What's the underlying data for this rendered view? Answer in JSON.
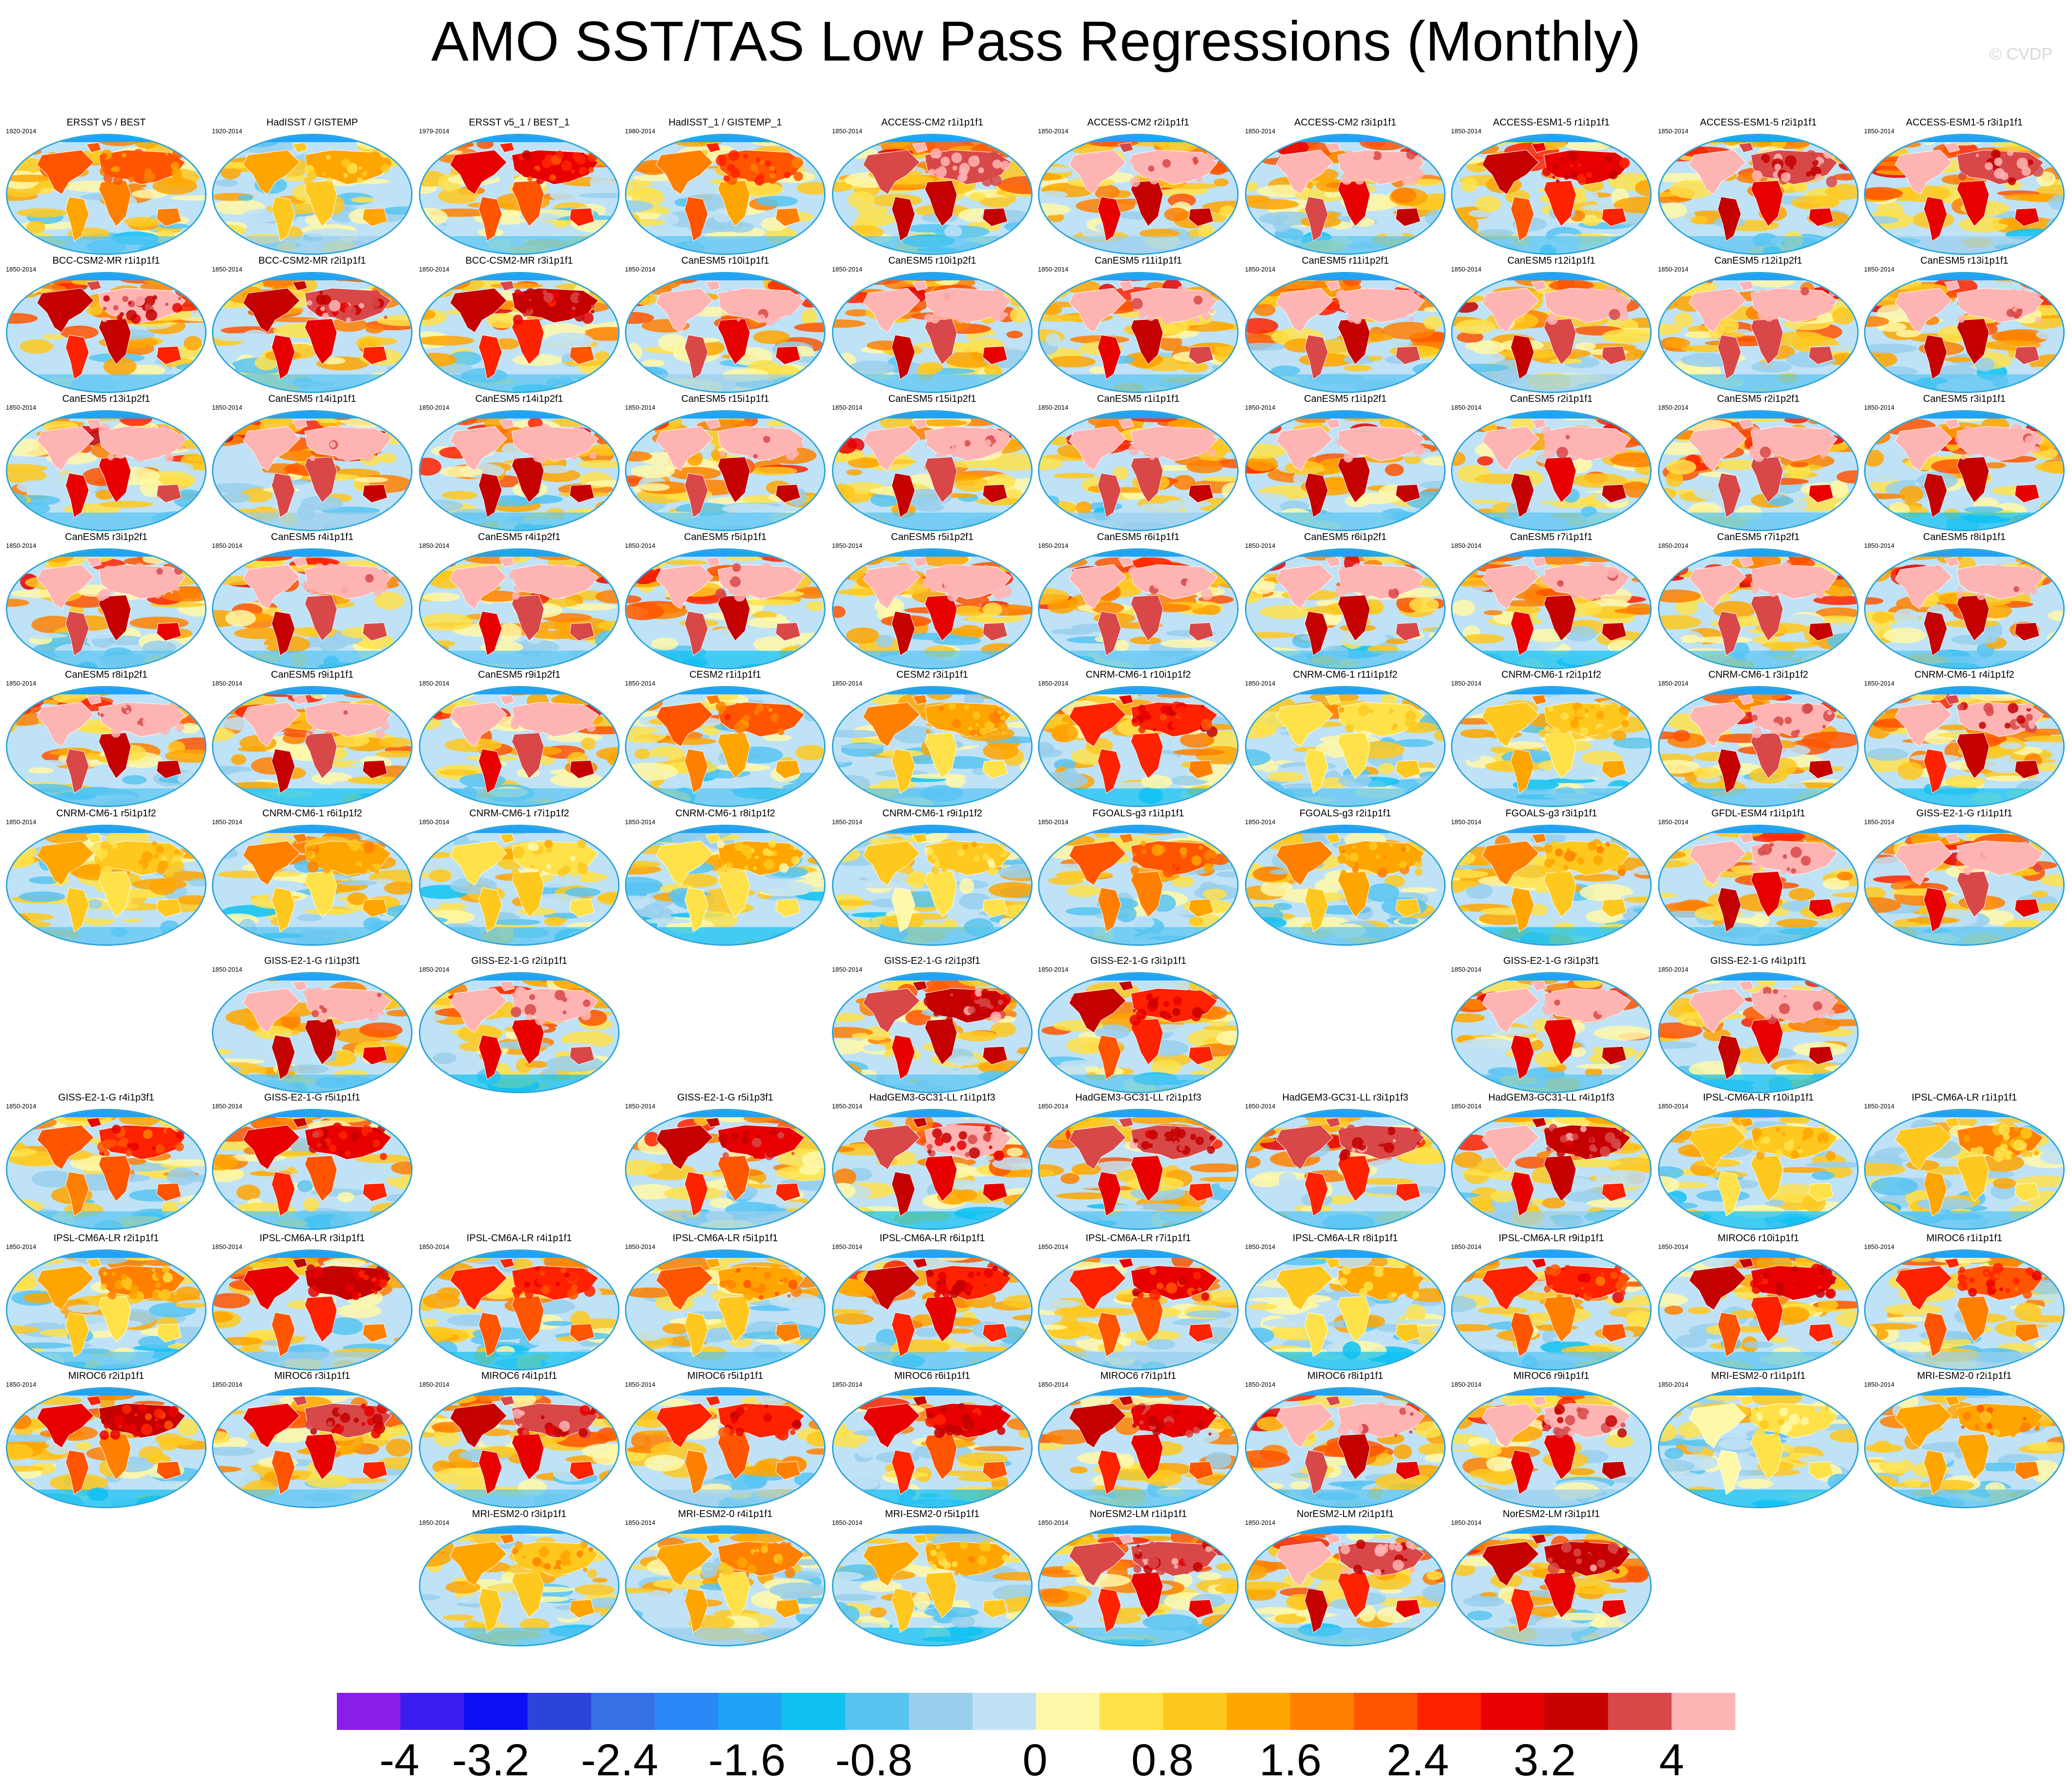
{
  "title": "AMO SST/TAS Low Pass Regressions (Monthly)",
  "credit": "© CVDP",
  "chart_data": {
    "type": "heatmap",
    "description_type": "panel-grid of global regression maps",
    "colorbar": {
      "colors": [
        "#8a1ee6",
        "#3a1ef0",
        "#0a10f2",
        "#2b45d8",
        "#3571e4",
        "#2a88f6",
        "#20a2f6",
        "#10c2f2",
        "#58c4f2",
        "#98cfec",
        "#bfe2f6",
        "#fff8a8",
        "#ffe24a",
        "#ffc81e",
        "#ffa500",
        "#ff8000",
        "#ff5500",
        "#ff2200",
        "#e80000",
        "#c40000",
        "#d84848",
        "#ffb4b4"
      ],
      "tick_labels": [
        "-4",
        "-3.2",
        "-2.4",
        "-1.6",
        "-0.8",
        "0",
        "0.8",
        "1.6",
        "2.4",
        "3.2",
        "4"
      ],
      "range": [
        -4,
        4
      ]
    },
    "panels": [
      {
        "name": "ERSST v5 / BEST",
        "years": "1920-2014",
        "row": 0,
        "col": 0,
        "intensity": 0.45
      },
      {
        "name": "HadISST / GISTEMP",
        "years": "1920-2014",
        "row": 0,
        "col": 1,
        "intensity": 0.3
      },
      {
        "name": "ERSST v5_1 / BEST_1",
        "years": "1979-2014",
        "row": 0,
        "col": 2,
        "intensity": 0.6
      },
      {
        "name": "HadISST_1 / GISTEMP_1",
        "years": "1980-2014",
        "row": 0,
        "col": 3,
        "intensity": 0.5
      },
      {
        "name": "ACCESS-CM2 r1i1p1f1",
        "years": "1850-2014",
        "row": 0,
        "col": 4,
        "intensity": 0.85
      },
      {
        "name": "ACCESS-CM2 r2i1p1f1",
        "years": "1850-2014",
        "row": 0,
        "col": 5,
        "intensity": 0.85
      },
      {
        "name": "ACCESS-CM2 r3i1p1f1",
        "years": "1850-2014",
        "row": 0,
        "col": 6,
        "intensity": 0.9
      },
      {
        "name": "ACCESS-ESM1-5 r1i1p1f1",
        "years": "1850-2014",
        "row": 0,
        "col": 7,
        "intensity": 0.65
      },
      {
        "name": "ACCESS-ESM1-5 r2i1p1f1",
        "years": "1850-2014",
        "row": 0,
        "col": 8,
        "intensity": 0.8
      },
      {
        "name": "ACCESS-ESM1-5 r3i1p1f1",
        "years": "1850-2014",
        "row": 0,
        "col": 9,
        "intensity": 0.8
      },
      {
        "name": "BCC-CSM2-MR r1i1p1f1",
        "years": "1850-2014",
        "row": 1,
        "col": 0,
        "intensity": 0.75
      },
      {
        "name": "BCC-CSM2-MR r2i1p1f1",
        "years": "1850-2014",
        "row": 1,
        "col": 1,
        "intensity": 0.75
      },
      {
        "name": "BCC-CSM2-MR r3i1p1f1",
        "years": "1850-2014",
        "row": 1,
        "col": 2,
        "intensity": 0.7
      },
      {
        "name": "CanESM5 r10i1p1f1",
        "years": "1850-2014",
        "row": 1,
        "col": 3,
        "intensity": 0.9
      },
      {
        "name": "CanESM5 r10i1p2f1",
        "years": "1850-2014",
        "row": 1,
        "col": 4,
        "intensity": 0.9
      },
      {
        "name": "CanESM5 r11i1p1f1",
        "years": "1850-2014",
        "row": 1,
        "col": 5,
        "intensity": 0.9
      },
      {
        "name": "CanESM5 r11i1p2f1",
        "years": "1850-2014",
        "row": 1,
        "col": 6,
        "intensity": 0.9
      },
      {
        "name": "CanESM5 r12i1p1f1",
        "years": "1850-2014",
        "row": 1,
        "col": 7,
        "intensity": 0.9
      },
      {
        "name": "CanESM5 r12i1p2f1",
        "years": "1850-2014",
        "row": 1,
        "col": 8,
        "intensity": 0.9
      },
      {
        "name": "CanESM5 r13i1p1f1",
        "years": "1850-2014",
        "row": 1,
        "col": 9,
        "intensity": 0.9
      },
      {
        "name": "CanESM5 r13i1p2f1",
        "years": "1850-2014",
        "row": 2,
        "col": 0,
        "intensity": 0.9
      },
      {
        "name": "CanESM5 r14i1p1f1",
        "years": "1850-2014",
        "row": 2,
        "col": 1,
        "intensity": 0.9
      },
      {
        "name": "CanESM5 r14i1p2f1",
        "years": "1850-2014",
        "row": 2,
        "col": 2,
        "intensity": 0.9
      },
      {
        "name": "CanESM5 r15i1p1f1",
        "years": "1850-2014",
        "row": 2,
        "col": 3,
        "intensity": 0.9
      },
      {
        "name": "CanESM5 r15i1p2f1",
        "years": "1850-2014",
        "row": 2,
        "col": 4,
        "intensity": 0.9
      },
      {
        "name": "CanESM5 r1i1p1f1",
        "years": "1850-2014",
        "row": 2,
        "col": 5,
        "intensity": 0.9
      },
      {
        "name": "CanESM5 r1i1p2f1",
        "years": "1850-2014",
        "row": 2,
        "col": 6,
        "intensity": 0.9
      },
      {
        "name": "CanESM5 r2i1p1f1",
        "years": "1850-2014",
        "row": 2,
        "col": 7,
        "intensity": 0.9
      },
      {
        "name": "CanESM5 r2i1p2f1",
        "years": "1850-2014",
        "row": 2,
        "col": 8,
        "intensity": 0.9
      },
      {
        "name": "CanESM5 r3i1p1f1",
        "years": "1850-2014",
        "row": 2,
        "col": 9,
        "intensity": 0.9
      },
      {
        "name": "CanESM5 r3i1p2f1",
        "years": "1850-2014",
        "row": 3,
        "col": 0,
        "intensity": 0.9
      },
      {
        "name": "CanESM5 r4i1p1f1",
        "years": "1850-2014",
        "row": 3,
        "col": 1,
        "intensity": 0.9
      },
      {
        "name": "CanESM5 r4i1p2f1",
        "years": "1850-2014",
        "row": 3,
        "col": 2,
        "intensity": 0.9
      },
      {
        "name": "CanESM5 r5i1p1f1",
        "years": "1850-2014",
        "row": 3,
        "col": 3,
        "intensity": 0.9
      },
      {
        "name": "CanESM5 r5i1p2f1",
        "years": "1850-2014",
        "row": 3,
        "col": 4,
        "intensity": 0.9
      },
      {
        "name": "CanESM5 r6i1p1f1",
        "years": "1850-2014",
        "row": 3,
        "col": 5,
        "intensity": 0.9
      },
      {
        "name": "CanESM5 r6i1p2f1",
        "years": "1850-2014",
        "row": 3,
        "col": 6,
        "intensity": 0.9
      },
      {
        "name": "CanESM5 r7i1p1f1",
        "years": "1850-2014",
        "row": 3,
        "col": 7,
        "intensity": 0.9
      },
      {
        "name": "CanESM5 r7i1p2f1",
        "years": "1850-2014",
        "row": 3,
        "col": 8,
        "intensity": 0.9
      },
      {
        "name": "CanESM5 r8i1p1f1",
        "years": "1850-2014",
        "row": 3,
        "col": 9,
        "intensity": 0.9
      },
      {
        "name": "CanESM5 r8i1p2f1",
        "years": "1850-2014",
        "row": 4,
        "col": 0,
        "intensity": 0.9
      },
      {
        "name": "CanESM5 r9i1p1f1",
        "years": "1850-2014",
        "row": 4,
        "col": 1,
        "intensity": 0.9
      },
      {
        "name": "CanESM5 r9i1p2f1",
        "years": "1850-2014",
        "row": 4,
        "col": 2,
        "intensity": 0.9
      },
      {
        "name": "CESM2 r1i1p1f1",
        "years": "1850-2014",
        "row": 4,
        "col": 3,
        "intensity": 0.45
      },
      {
        "name": "CESM2 r3i1p1f1",
        "years": "1850-2014",
        "row": 4,
        "col": 4,
        "intensity": 0.35
      },
      {
        "name": "CNRM-CM6-1 r10i1p1f2",
        "years": "1850-2014",
        "row": 4,
        "col": 5,
        "intensity": 0.6
      },
      {
        "name": "CNRM-CM6-1 r11i1p1f2",
        "years": "1850-2014",
        "row": 4,
        "col": 6,
        "intensity": 0.25
      },
      {
        "name": "CNRM-CM6-1 r2i1p1f2",
        "years": "1850-2014",
        "row": 4,
        "col": 7,
        "intensity": 0.3
      },
      {
        "name": "CNRM-CM6-1 r3i1p1f2",
        "years": "1850-2014",
        "row": 4,
        "col": 8,
        "intensity": 0.85
      },
      {
        "name": "CNRM-CM6-1 r4i1p1f2",
        "years": "1850-2014",
        "row": 4,
        "col": 9,
        "intensity": 0.8
      },
      {
        "name": "CNRM-CM6-1 r5i1p1f2",
        "years": "1850-2014",
        "row": 5,
        "col": 0,
        "intensity": 0.3
      },
      {
        "name": "CNRM-CM6-1 r6i1p1f2",
        "years": "1850-2014",
        "row": 5,
        "col": 1,
        "intensity": 0.35
      },
      {
        "name": "CNRM-CM6-1 r7i1p1f2",
        "years": "1850-2014",
        "row": 5,
        "col": 2,
        "intensity": 0.25
      },
      {
        "name": "CNRM-CM6-1 r8i1p1f2",
        "years": "1850-2014",
        "row": 5,
        "col": 3,
        "intensity": 0.25
      },
      {
        "name": "CNRM-CM6-1 r9i1p1f2",
        "years": "1850-2014",
        "row": 5,
        "col": 4,
        "intensity": 0.25
      },
      {
        "name": "FGOALS-g3 r1i1p1f1",
        "years": "1850-2014",
        "row": 5,
        "col": 5,
        "intensity": 0.45
      },
      {
        "name": "FGOALS-g3 r2i1p1f1",
        "years": "1850-2014",
        "row": 5,
        "col": 6,
        "intensity": 0.35
      },
      {
        "name": "FGOALS-g3 r3i1p1f1",
        "years": "1850-2014",
        "row": 5,
        "col": 7,
        "intensity": 0.35
      },
      {
        "name": "GFDL-ESM4 r1i1p1f1",
        "years": "1850-2014",
        "row": 5,
        "col": 8,
        "intensity": 0.85
      },
      {
        "name": "GISS-E2-1-G r1i1p1f1",
        "years": "1850-2014",
        "row": 5,
        "col": 9,
        "intensity": 0.9
      },
      {
        "name": "GISS-E2-1-G r1i1p3f1",
        "years": "1850-2014",
        "row": 6,
        "col": 1,
        "intensity": 0.85
      },
      {
        "name": "GISS-E2-1-G r2i1p1f1",
        "years": "1850-2014",
        "row": 6,
        "col": 2,
        "intensity": 0.85
      },
      {
        "name": "GISS-E2-1-G r2i1p3f1",
        "years": "1850-2014",
        "row": 6,
        "col": 4,
        "intensity": 0.75
      },
      {
        "name": "GISS-E2-1-G r3i1p1f1",
        "years": "1850-2014",
        "row": 6,
        "col": 5,
        "intensity": 0.65
      },
      {
        "name": "GISS-E2-1-G r3i1p3f1",
        "years": "1850-2014",
        "row": 6,
        "col": 7,
        "intensity": 0.85
      },
      {
        "name": "GISS-E2-1-G r4i1p1f1",
        "years": "1850-2014",
        "row": 6,
        "col": 8,
        "intensity": 0.85
      },
      {
        "name": "GISS-E2-1-G r4i1p3f1",
        "years": "1850-2014",
        "row": 7,
        "col": 0,
        "intensity": 0.55
      },
      {
        "name": "GISS-E2-1-G r5i1p1f1",
        "years": "1850-2014",
        "row": 7,
        "col": 1,
        "intensity": 0.65
      },
      {
        "name": "GISS-E2-1-G r5i1p3f1",
        "years": "1850-2014",
        "row": 7,
        "col": 3,
        "intensity": 0.7
      },
      {
        "name": "HadGEM3-GC31-LL r1i1p1f3",
        "years": "1850-2014",
        "row": 7,
        "col": 4,
        "intensity": 0.75
      },
      {
        "name": "HadGEM3-GC31-LL r2i1p1f3",
        "years": "1850-2014",
        "row": 7,
        "col": 5,
        "intensity": 0.75
      },
      {
        "name": "HadGEM3-GC31-LL r3i1p1f3",
        "years": "1850-2014",
        "row": 7,
        "col": 6,
        "intensity": 0.75
      },
      {
        "name": "HadGEM3-GC31-LL r4i1p1f3",
        "years": "1850-2014",
        "row": 7,
        "col": 7,
        "intensity": 0.75
      },
      {
        "name": "IPSL-CM6A-LR r10i1p1f1",
        "years": "1850-2014",
        "row": 7,
        "col": 8,
        "intensity": 0.3
      },
      {
        "name": "IPSL-CM6A-LR r1i1p1f1",
        "years": "1850-2014",
        "row": 7,
        "col": 9,
        "intensity": 0.3
      },
      {
        "name": "IPSL-CM6A-LR r2i1p1f1",
        "years": "1850-2014",
        "row": 8,
        "col": 0,
        "intensity": 0.35
      },
      {
        "name": "IPSL-CM6A-LR r3i1p1f1",
        "years": "1850-2014",
        "row": 8,
        "col": 1,
        "intensity": 0.65
      },
      {
        "name": "IPSL-CM6A-LR r4i1p1f1",
        "years": "1850-2014",
        "row": 8,
        "col": 2,
        "intensity": 0.55
      },
      {
        "name": "IPSL-CM6A-LR r5i1p1f1",
        "years": "1850-2014",
        "row": 8,
        "col": 3,
        "intensity": 0.4
      },
      {
        "name": "IPSL-CM6A-LR r6i1p1f1",
        "years": "1850-2014",
        "row": 8,
        "col": 4,
        "intensity": 0.65
      },
      {
        "name": "IPSL-CM6A-LR r7i1p1f1",
        "years": "1850-2014",
        "row": 8,
        "col": 5,
        "intensity": 0.6
      },
      {
        "name": "IPSL-CM6A-LR r8i1p1f1",
        "years": "1850-2014",
        "row": 8,
        "col": 6,
        "intensity": 0.3
      },
      {
        "name": "IPSL-CM6A-LR r9i1p1f1",
        "years": "1850-2014",
        "row": 8,
        "col": 7,
        "intensity": 0.55
      },
      {
        "name": "MIROC6 r10i1p1f1",
        "years": "1850-2014",
        "row": 8,
        "col": 8,
        "intensity": 0.65
      },
      {
        "name": "MIROC6 r1i1p1f1",
        "years": "1850-2014",
        "row": 8,
        "col": 9,
        "intensity": 0.55
      },
      {
        "name": "MIROC6 r2i1p1f1",
        "years": "1850-2014",
        "row": 9,
        "col": 0,
        "intensity": 0.6
      },
      {
        "name": "MIROC6 r3i1p1f1",
        "years": "1850-2014",
        "row": 9,
        "col": 1,
        "intensity": 0.7
      },
      {
        "name": "MIROC6 r4i1p1f1",
        "years": "1850-2014",
        "row": 9,
        "col": 2,
        "intensity": 0.75
      },
      {
        "name": "MIROC6 r5i1p1f1",
        "years": "1850-2014",
        "row": 9,
        "col": 3,
        "intensity": 0.6
      },
      {
        "name": "MIROC6 r6i1p1f1",
        "years": "1850-2014",
        "row": 9,
        "col": 4,
        "intensity": 0.65
      },
      {
        "name": "MIROC6 r7i1p1f1",
        "years": "1850-2014",
        "row": 9,
        "col": 5,
        "intensity": 0.7
      },
      {
        "name": "MIROC6 r8i1p1f1",
        "years": "1850-2014",
        "row": 9,
        "col": 6,
        "intensity": 0.85
      },
      {
        "name": "MIROC6 r9i1p1f1",
        "years": "1850-2014",
        "row": 9,
        "col": 7,
        "intensity": 0.8
      },
      {
        "name": "MRI-ESM2-0 r1i1p1f1",
        "years": "1850-2014",
        "row": 9,
        "col": 8,
        "intensity": 0.2
      },
      {
        "name": "MRI-ESM2-0 r2i1p1f1",
        "years": "1850-2014",
        "row": 9,
        "col": 9,
        "intensity": 0.4
      },
      {
        "name": "MRI-ESM2-0 r3i1p1f1",
        "years": "1850-2014",
        "row": 10,
        "col": 2,
        "intensity": 0.35
      },
      {
        "name": "MRI-ESM2-0 r4i1p1f1",
        "years": "1850-2014",
        "row": 10,
        "col": 3,
        "intensity": 0.35
      },
      {
        "name": "MRI-ESM2-0 r5i1p1f1",
        "years": "1850-2014",
        "row": 10,
        "col": 4,
        "intensity": 0.3
      },
      {
        "name": "NorESM2-LM r1i1p1f1",
        "years": "1850-2014",
        "row": 10,
        "col": 5,
        "intensity": 0.75
      },
      {
        "name": "NorESM2-LM r2i1p1f1",
        "years": "1850-2014",
        "row": 10,
        "col": 6,
        "intensity": 0.8
      },
      {
        "name": "NorESM2-LM r3i1p1f1",
        "years": "1850-2014",
        "row": 10,
        "col": 7,
        "intensity": 0.75
      }
    ]
  }
}
